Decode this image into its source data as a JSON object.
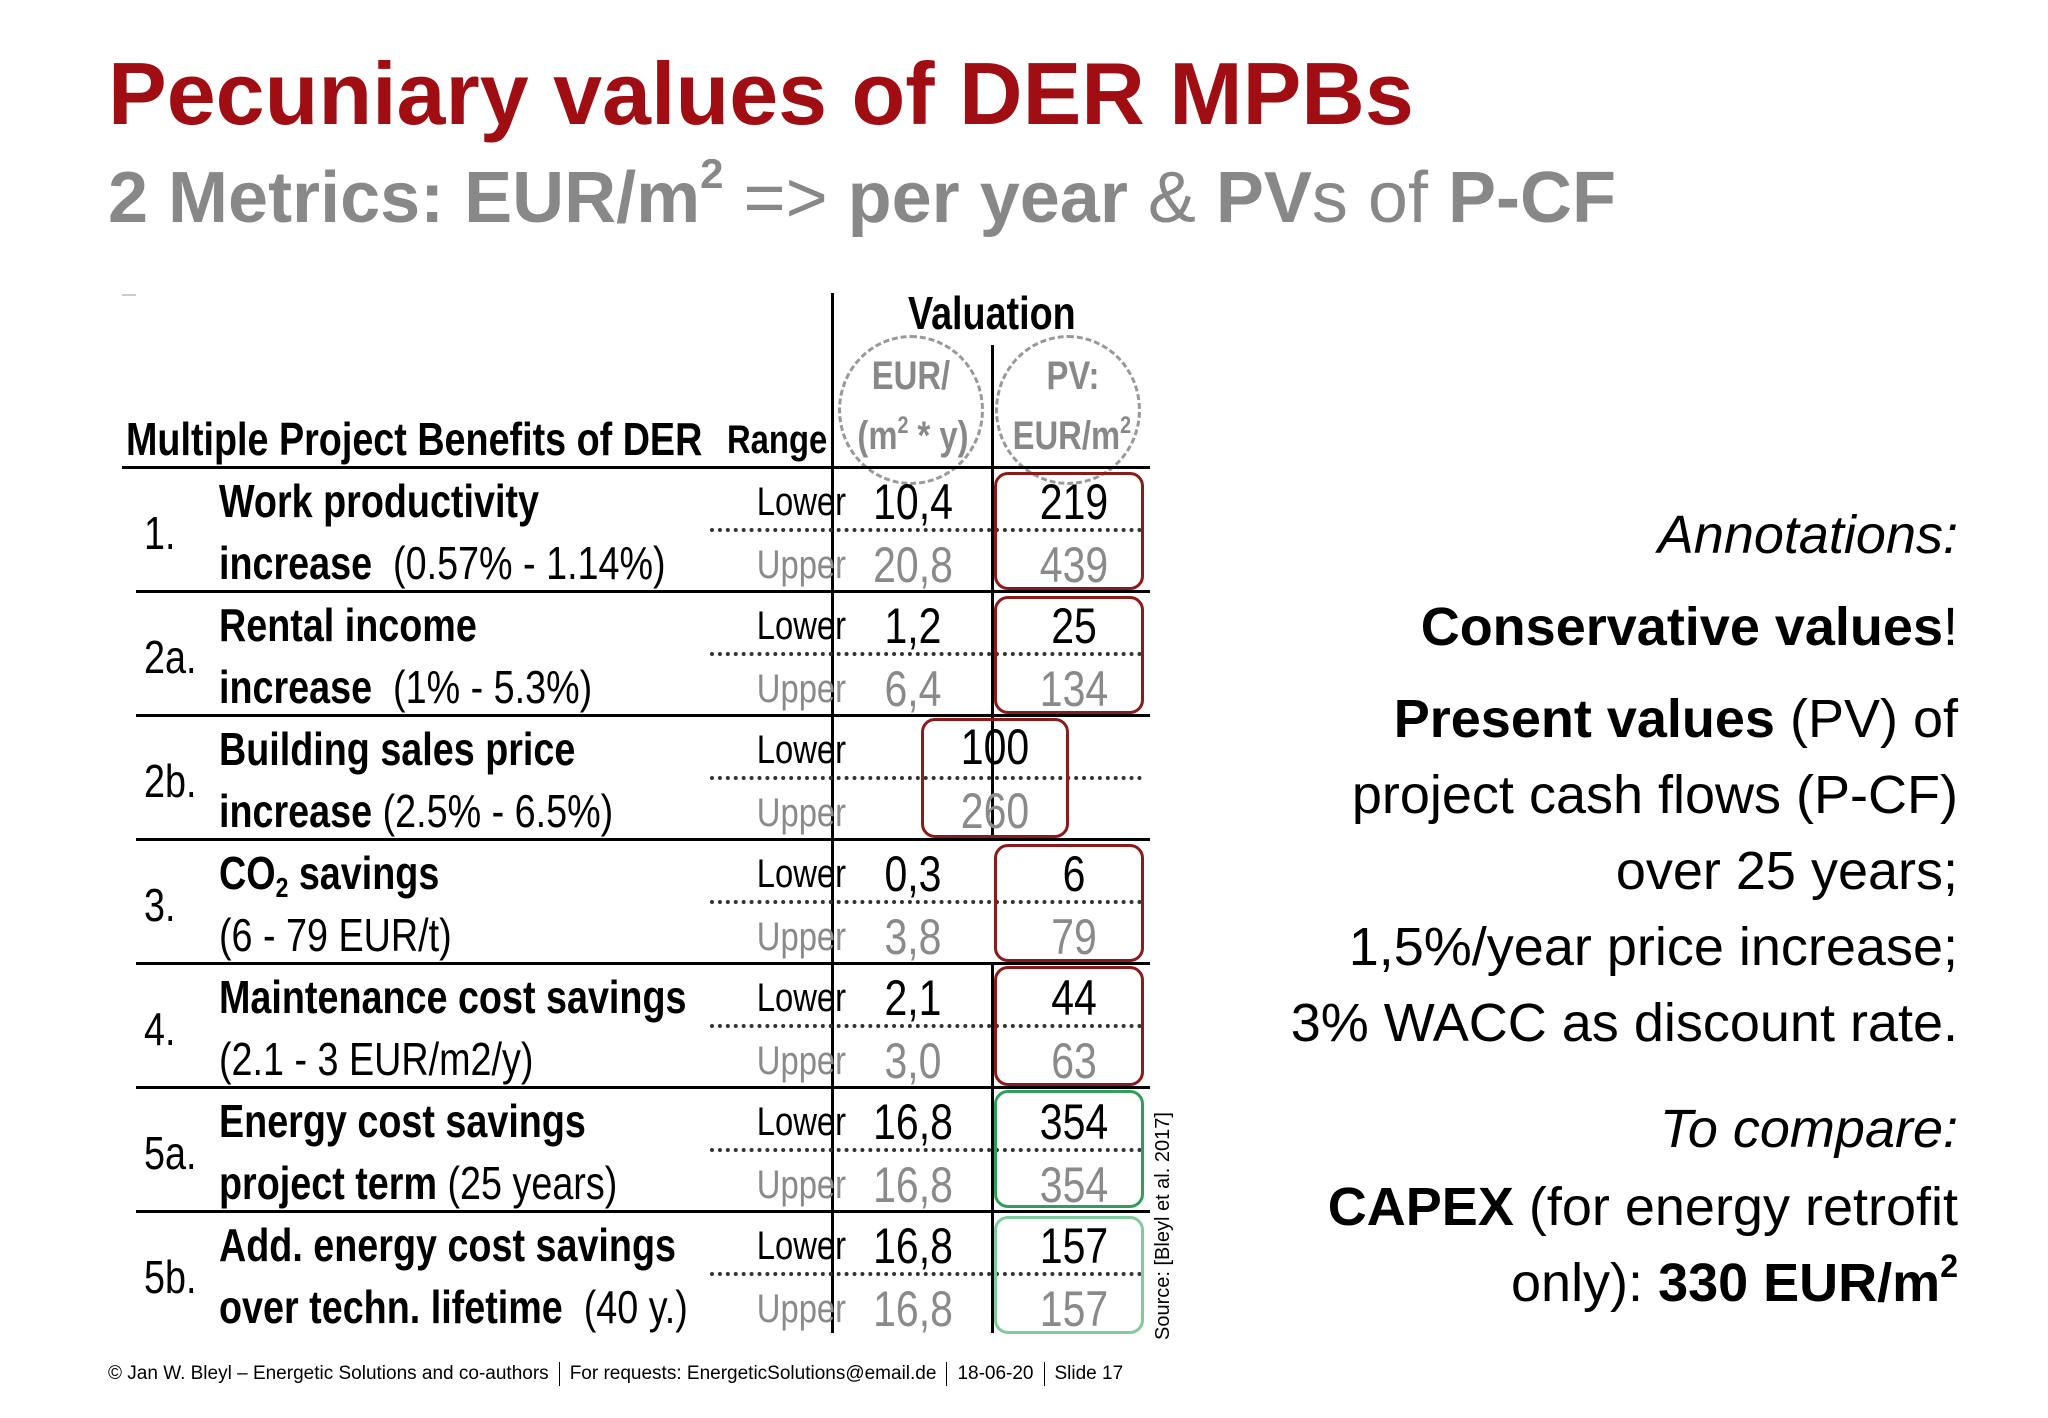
{
  "title": "Pecuniary values of DER MPBs",
  "subtitle": {
    "part1": "2 Metrics: EUR/m",
    "sup": "2",
    "part2": " => ",
    "part3": "per year",
    "part4": " & ",
    "part5": "PV",
    "part6": "s of ",
    "part7": "P-CF"
  },
  "table": {
    "valuation_header": "Valuation",
    "col_benefits": "Multiple Project Benefits of DER",
    "col_range": "Range",
    "col_eur_line1": "EUR/",
    "col_eur_line2a": "(m",
    "col_eur_sup": "2",
    "col_eur_line2b": " * y)",
    "col_pv_line1": "PV:",
    "col_pv_line2": "EUR/m",
    "col_pv_sup": "2",
    "lower_label": "Lower",
    "upper_label": "Upper",
    "rows": [
      {
        "num": "1.",
        "title": "Work productivity",
        "sub_bold": "increase",
        "sub_rest": "(0.57% - 1.14%)",
        "eur_lower": "10,4",
        "eur_upper": "20,8",
        "pv_lower": "219",
        "pv_upper": "439"
      },
      {
        "num": "2a.",
        "title": "Rental income",
        "sub_bold": "increase",
        "sub_rest": "(1% - 5.3%)",
        "eur_lower": "1,2",
        "eur_upper": "6,4",
        "pv_lower": "25",
        "pv_upper": "134"
      },
      {
        "num": "2b.",
        "title": "Building sales price",
        "sub_bold": "increase",
        "sub_rest": "(2.5% - 6.5%)",
        "eur_lower": "",
        "eur_upper": "",
        "pv_lower": "100",
        "pv_upper": "260"
      },
      {
        "num": "3.",
        "title_a": "CO",
        "title_sub": "2",
        "title_b": " savings",
        "sub_bold": "",
        "sub_rest": "(6 - 79 EUR/t)",
        "eur_lower": "0,3",
        "eur_upper": "3,8",
        "pv_lower": "6",
        "pv_upper": "79"
      },
      {
        "num": "4.",
        "title": "Maintenance cost savings",
        "sub_bold": "",
        "sub_rest": "(2.1 - 3 EUR/m2/y)",
        "eur_lower": "2,1",
        "eur_upper": "3,0",
        "pv_lower": "44",
        "pv_upper": "63"
      },
      {
        "num": "5a.",
        "title": "Energy cost savings",
        "sub_bold": "project term",
        "sub_rest": "(25 years)",
        "eur_lower": "16,8",
        "eur_upper": "16,8",
        "pv_lower": "354",
        "pv_upper": "354"
      },
      {
        "num": "5b.",
        "title": "Add. energy cost savings",
        "sub_bold": "over techn. lifetime",
        "sub_rest": "(40 y.)",
        "eur_lower": "16,8",
        "eur_upper": "16,8",
        "pv_lower": "157",
        "pv_upper": "157"
      }
    ],
    "source": "Source: [Bleyl et al. 2017]"
  },
  "annotations": {
    "heading": "Annotations:",
    "conservative_bold": "Conservative values",
    "conservative_end": "!",
    "pv_bold": "Present values",
    "pv_rest": " (PV) of",
    "line3": "project cash flows (P-CF)",
    "line4": "over 25 years;",
    "line5": "1,5%/year price increase;",
    "line6": "3% WACC as discount rate.",
    "compare": "To compare:",
    "capex_bold": "CAPEX",
    "capex_rest": " (for energy retrofit",
    "only_rest": "only): ",
    "only_bold": "330 EUR/m",
    "only_sup": "2"
  },
  "footer": {
    "author": "© Jan W. Bleyl – Energetic Solutions and co-authors",
    "requests": "For requests:  EnergeticSolutions@email.de",
    "date": "18-06-20",
    "slide": "Slide 17"
  },
  "colors": {
    "title": "#a00d12",
    "subtitle": "#888888",
    "box_red": "#8b1a1a",
    "box_green": "#2e9e5b"
  }
}
